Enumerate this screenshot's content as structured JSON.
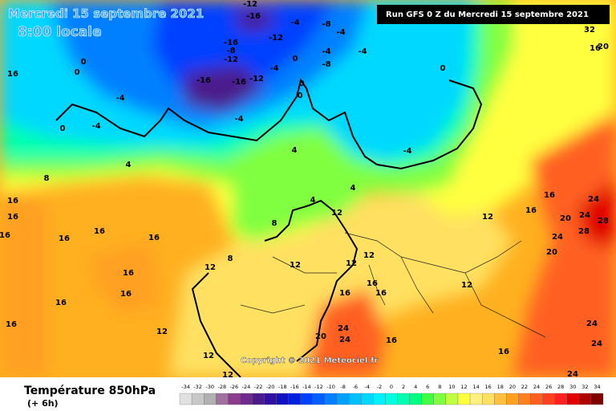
{
  "header": {
    "date": "Mercredi 15 septembre 2021",
    "time": "8:00 locale",
    "run": "Run GFS 0 Z du Mercredi 15 septembre 2021",
    "copyright": "Copyright © 2021 Meteociel.fr"
  },
  "footer": {
    "title": "Température 850hPa",
    "step": "(+ 6h)"
  },
  "legend": {
    "ticks": [
      -34,
      -32,
      -30,
      -28,
      -26,
      -24,
      -22,
      -20,
      -18,
      -16,
      -14,
      -12,
      -10,
      -8,
      -6,
      -4,
      -2,
      0,
      2,
      4,
      6,
      8,
      10,
      12,
      14,
      16,
      18,
      20,
      22,
      24,
      26,
      28,
      30,
      32,
      34
    ],
    "colors": [
      "#e0e0e0",
      "#c8c8c8",
      "#b0b0b0",
      "#a070a0",
      "#8c3c8c",
      "#6e2a8c",
      "#4c1a8c",
      "#3010a0",
      "#1010c0",
      "#0020e0",
      "#0040ff",
      "#0060ff",
      "#0080ff",
      "#00a0ff",
      "#00c0ff",
      "#00d8ff",
      "#00f0ff",
      "#00ffe0",
      "#00ffb0",
      "#00ff80",
      "#40ff40",
      "#80ff40",
      "#c0ff40",
      "#ffff40",
      "#fff080",
      "#ffe060",
      "#ffc040",
      "#ffa020",
      "#ff8020",
      "#ff6020",
      "#ff4020",
      "#ff2020",
      "#e00000",
      "#b00000",
      "#800000"
    ]
  },
  "map": {
    "labels": [
      -12,
      -16,
      -12,
      -4,
      -8,
      -4,
      -16,
      -8,
      -12,
      -16,
      -16,
      -12,
      -4,
      0,
      -8,
      -4,
      -4,
      0,
      0,
      0,
      -4,
      -4,
      0,
      0,
      0,
      -4,
      -4,
      4,
      4,
      4,
      4,
      8,
      8,
      8,
      16,
      16,
      16,
      16,
      16,
      16,
      16,
      16,
      16,
      16,
      16,
      12,
      12,
      12,
      12,
      12,
      12,
      12,
      12,
      12,
      12,
      16,
      16,
      16,
      16,
      16,
      16,
      16,
      20,
      20,
      20,
      24,
      24,
      24,
      24,
      24,
      24,
      24,
      24,
      28,
      28,
      32,
      16,
      20
    ]
  }
}
